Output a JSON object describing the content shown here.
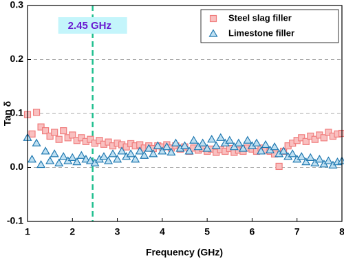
{
  "chart_data": {
    "type": "scatter",
    "xlabel": "Frequency (GHz)",
    "ylabel": "Tan δ",
    "xlim": [
      1,
      8
    ],
    "ylim": [
      -0.1,
      0.3
    ],
    "xticks": [
      1,
      2,
      3,
      4,
      5,
      6,
      7,
      8
    ],
    "yticks": [
      -0.1,
      {
        "value": 0,
        "label": "0.0"
      },
      0.1,
      0.2,
      0.3
    ],
    "grid": true,
    "legend": "upper right",
    "vline": 2.45,
    "vline_color": "#1fbf8f",
    "annotation": "2.45 GHz",
    "x": [
      1,
      1.1,
      1.2,
      1.3,
      1.4,
      1.5,
      1.6,
      1.7,
      1.8,
      1.9,
      2,
      2.1,
      2.2,
      2.3,
      2.4,
      2.5,
      2.6,
      2.7,
      2.8,
      2.9,
      3,
      3.1,
      3.2,
      3.3,
      3.4,
      3.5,
      3.6,
      3.7,
      3.8,
      3.9,
      4,
      4.1,
      4.2,
      4.3,
      4.4,
      4.5,
      4.6,
      4.7,
      4.8,
      4.9,
      5,
      5.1,
      5.2,
      5.3,
      5.4,
      5.5,
      5.6,
      5.7,
      5.8,
      5.9,
      6,
      6.1,
      6.2,
      6.3,
      6.4,
      6.5,
      6.6,
      6.7,
      6.8,
      6.9,
      7,
      7.1,
      7.2,
      7.3,
      7.4,
      7.5,
      7.6,
      7.7,
      7.8,
      7.9,
      8
    ],
    "series": [
      {
        "name": "Steel slag filler",
        "color": "#f07c7c",
        "marker": "square",
        "values": [
          0.098,
          0.062,
          0.102,
          0.075,
          0.068,
          0.058,
          0.065,
          0.052,
          0.068,
          0.055,
          0.06,
          0.05,
          0.055,
          0.048,
          0.052,
          0.045,
          0.05,
          0.043,
          0.047,
          0.04,
          0.045,
          0.042,
          0.038,
          0.044,
          0.04,
          0.042,
          0.036,
          0.04,
          0.035,
          0.04,
          0.038,
          0.042,
          0.036,
          0.04,
          0.034,
          0.038,
          0.03,
          0.036,
          0.032,
          0.035,
          0.03,
          0.034,
          0.028,
          0.033,
          0.03,
          0.035,
          0.028,
          0.032,
          0.03,
          0.036,
          0.034,
          0.03,
          0.036,
          0.032,
          0.03,
          0.025,
          0.002,
          0.03,
          0.04,
          0.045,
          0.05,
          0.055,
          0.048,
          0.058,
          0.052,
          0.06,
          0.055,
          0.065,
          0.058,
          0.062,
          0.063
        ]
      },
      {
        "name": "Limestone filler",
        "color": "#1f78b0",
        "marker": "triangle",
        "values": [
          0.055,
          0.015,
          0.045,
          0.005,
          0.03,
          0.012,
          0.025,
          0.008,
          0.02,
          0.012,
          0.018,
          0.01,
          0.022,
          0.015,
          0.012,
          0.008,
          0.015,
          0.02,
          0.012,
          0.025,
          0.015,
          0.03,
          0.02,
          0.025,
          0.015,
          0.03,
          0.022,
          0.035,
          0.025,
          0.04,
          0.03,
          0.038,
          0.028,
          0.045,
          0.035,
          0.04,
          0.03,
          0.05,
          0.038,
          0.045,
          0.035,
          0.052,
          0.04,
          0.055,
          0.045,
          0.05,
          0.038,
          0.045,
          0.035,
          0.05,
          0.04,
          0.045,
          0.03,
          0.042,
          0.032,
          0.038,
          0.025,
          0.03,
          0.02,
          0.025,
          0.015,
          0.02,
          0.01,
          0.018,
          0.008,
          0.015,
          0.006,
          0.012,
          0.004,
          0.01,
          0.012
        ]
      }
    ]
  }
}
